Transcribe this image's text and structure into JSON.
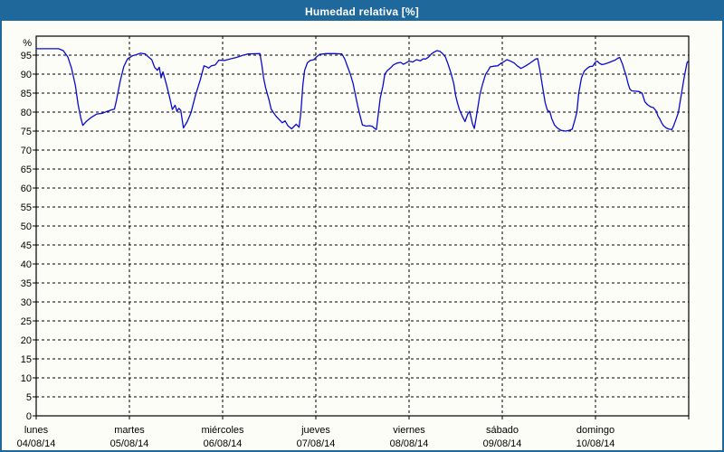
{
  "window": {
    "title": "Humedad relativa [%]"
  },
  "colors": {
    "accent_blue": "#1E689C",
    "line_blue": "#0A0ACD",
    "axis_black": "#000000",
    "background": "#FDFDF8",
    "title_text": "#FFFFFF"
  },
  "chart_data": {
    "type": "line",
    "title": "Humedad relativa [%]",
    "xlabel": "",
    "ylabel": "%",
    "ylim": [
      0,
      100
    ],
    "ytick_step": 5,
    "ytick_labels": [
      "0",
      "5",
      "10",
      "15",
      "20",
      "25",
      "30",
      "35",
      "40",
      "45",
      "50",
      "55",
      "60",
      "65",
      "70",
      "75",
      "80",
      "85",
      "90",
      "95"
    ],
    "grid": "dashed-black",
    "legend_position": "none",
    "x_axis": {
      "unit": "days",
      "range_days": 7,
      "days": [
        {
          "name": "lunes",
          "date": "04/08/14"
        },
        {
          "name": "martes",
          "date": "05/08/14"
        },
        {
          "name": "miércoles",
          "date": "06/08/14"
        },
        {
          "name": "jueves",
          "date": "07/08/14"
        },
        {
          "name": "viernes",
          "date": "08/08/14"
        },
        {
          "name": "sábado",
          "date": "09/08/14"
        },
        {
          "name": "domingo",
          "date": "10/08/14"
        }
      ]
    },
    "series": [
      {
        "name": "Humedad relativa",
        "color": "#0A0ACD",
        "points": [
          [
            0.0,
            96.7
          ],
          [
            0.24,
            96.7
          ],
          [
            0.29,
            96.2
          ],
          [
            0.34,
            94.5
          ],
          [
            0.38,
            91.5
          ],
          [
            0.42,
            87.0
          ],
          [
            0.45,
            82.0
          ],
          [
            0.48,
            78.3
          ],
          [
            0.5,
            76.5
          ],
          [
            0.54,
            77.6
          ],
          [
            0.59,
            78.6
          ],
          [
            0.65,
            79.5
          ],
          [
            0.71,
            79.7
          ],
          [
            0.76,
            80.2
          ],
          [
            0.81,
            80.6
          ],
          [
            0.84,
            80.8
          ],
          [
            0.86,
            83.0
          ],
          [
            0.9,
            88.0
          ],
          [
            0.94,
            92.0
          ],
          [
            0.98,
            94.0
          ],
          [
            1.03,
            94.8
          ],
          [
            1.07,
            95.1
          ],
          [
            1.12,
            95.5
          ],
          [
            1.17,
            95.3
          ],
          [
            1.21,
            94.4
          ],
          [
            1.24,
            93.8
          ],
          [
            1.27,
            91.8
          ],
          [
            1.3,
            91.0
          ],
          [
            1.32,
            91.8
          ],
          [
            1.34,
            89.0
          ],
          [
            1.36,
            90.6
          ],
          [
            1.4,
            87.0
          ],
          [
            1.43,
            84.0
          ],
          [
            1.46,
            80.7
          ],
          [
            1.49,
            81.8
          ],
          [
            1.51,
            80.2
          ],
          [
            1.53,
            81.0
          ],
          [
            1.55,
            80.5
          ],
          [
            1.58,
            75.8
          ],
          [
            1.62,
            77.5
          ],
          [
            1.66,
            79.8
          ],
          [
            1.71,
            84.5
          ],
          [
            1.76,
            88.5
          ],
          [
            1.8,
            92.2
          ],
          [
            1.82,
            92.0
          ],
          [
            1.85,
            91.6
          ],
          [
            1.88,
            92.2
          ],
          [
            1.92,
            92.4
          ],
          [
            1.96,
            93.7
          ],
          [
            2.02,
            93.6
          ],
          [
            2.08,
            94.0
          ],
          [
            2.15,
            94.4
          ],
          [
            2.21,
            94.9
          ],
          [
            2.27,
            95.3
          ],
          [
            2.4,
            95.4
          ],
          [
            2.42,
            92.5
          ],
          [
            2.44,
            89.0
          ],
          [
            2.46,
            86.5
          ],
          [
            2.48,
            84.8
          ],
          [
            2.5,
            83.0
          ],
          [
            2.52,
            80.8
          ],
          [
            2.57,
            79.0
          ],
          [
            2.6,
            78.2
          ],
          [
            2.64,
            77.2
          ],
          [
            2.67,
            77.7
          ],
          [
            2.7,
            76.4
          ],
          [
            2.74,
            75.6
          ],
          [
            2.79,
            76.8
          ],
          [
            2.82,
            76.0
          ],
          [
            2.84,
            80.0
          ],
          [
            2.86,
            87.0
          ],
          [
            2.88,
            91.0
          ],
          [
            2.91,
            93.0
          ],
          [
            2.94,
            93.6
          ],
          [
            2.98,
            93.8
          ],
          [
            3.01,
            94.6
          ],
          [
            3.04,
            95.2
          ],
          [
            3.11,
            95.4
          ],
          [
            3.2,
            95.4
          ],
          [
            3.28,
            95.3
          ],
          [
            3.31,
            94.0
          ],
          [
            3.34,
            92.0
          ],
          [
            3.37,
            90.0
          ],
          [
            3.4,
            87.5
          ],
          [
            3.42,
            85.0
          ],
          [
            3.45,
            81.5
          ],
          [
            3.47,
            79.5
          ],
          [
            3.49,
            77.5
          ],
          [
            3.5,
            76.6
          ],
          [
            3.54,
            76.3
          ],
          [
            3.58,
            76.4
          ],
          [
            3.61,
            76.2
          ],
          [
            3.63,
            75.7
          ],
          [
            3.65,
            75.4
          ],
          [
            3.69,
            83.6
          ],
          [
            3.72,
            87.0
          ],
          [
            3.74,
            90.0
          ],
          [
            3.77,
            91.0
          ],
          [
            3.8,
            91.6
          ],
          [
            3.83,
            92.4
          ],
          [
            3.87,
            92.9
          ],
          [
            3.91,
            93.1
          ],
          [
            3.94,
            92.6
          ],
          [
            3.97,
            93.0
          ],
          [
            4.0,
            93.4
          ],
          [
            4.04,
            93.2
          ],
          [
            4.08,
            93.8
          ],
          [
            4.12,
            93.5
          ],
          [
            4.15,
            94.0
          ],
          [
            4.18,
            94.0
          ],
          [
            4.21,
            94.5
          ],
          [
            4.24,
            95.3
          ],
          [
            4.27,
            95.8
          ],
          [
            4.3,
            96.2
          ],
          [
            4.33,
            96.0
          ],
          [
            4.36,
            95.4
          ],
          [
            4.39,
            94.5
          ],
          [
            4.42,
            92.5
          ],
          [
            4.45,
            90.2
          ],
          [
            4.48,
            87.5
          ],
          [
            4.5,
            84.3
          ],
          [
            4.52,
            82.3
          ],
          [
            4.54,
            80.7
          ],
          [
            4.57,
            79.0
          ],
          [
            4.6,
            77.5
          ],
          [
            4.63,
            79.5
          ],
          [
            4.65,
            80.2
          ],
          [
            4.68,
            77.0
          ],
          [
            4.7,
            75.7
          ],
          [
            4.73,
            80.0
          ],
          [
            4.76,
            84.7
          ],
          [
            4.79,
            87.5
          ],
          [
            4.82,
            89.9
          ],
          [
            4.85,
            91.0
          ],
          [
            4.87,
            91.9
          ],
          [
            4.91,
            92.1
          ],
          [
            4.95,
            92.2
          ],
          [
            4.99,
            92.9
          ],
          [
            5.02,
            93.3
          ],
          [
            5.05,
            93.8
          ],
          [
            5.09,
            93.4
          ],
          [
            5.13,
            92.9
          ],
          [
            5.16,
            92.2
          ],
          [
            5.2,
            91.5
          ],
          [
            5.24,
            92.0
          ],
          [
            5.28,
            92.6
          ],
          [
            5.32,
            93.3
          ],
          [
            5.36,
            94.0
          ],
          [
            5.38,
            94.1
          ],
          [
            5.4,
            91.5
          ],
          [
            5.42,
            88.5
          ],
          [
            5.44,
            85.5
          ],
          [
            5.46,
            82.5
          ],
          [
            5.48,
            80.8
          ],
          [
            5.49,
            80.3
          ],
          [
            5.51,
            80.2
          ],
          [
            5.53,
            78.3
          ],
          [
            5.56,
            76.6
          ],
          [
            5.59,
            75.8
          ],
          [
            5.63,
            75.2
          ],
          [
            5.68,
            75.0
          ],
          [
            5.72,
            75.2
          ],
          [
            5.75,
            75.5
          ],
          [
            5.78,
            78.0
          ],
          [
            5.8,
            80.0
          ],
          [
            5.82,
            85.0
          ],
          [
            5.85,
            89.0
          ],
          [
            5.88,
            90.8
          ],
          [
            5.91,
            91.5
          ],
          [
            5.94,
            92.0
          ],
          [
            5.97,
            92.1
          ],
          [
            6.0,
            93.2
          ],
          [
            6.02,
            93.4
          ],
          [
            6.04,
            92.9
          ],
          [
            6.07,
            92.5
          ],
          [
            6.1,
            92.7
          ],
          [
            6.14,
            93.0
          ],
          [
            6.17,
            93.3
          ],
          [
            6.21,
            93.7
          ],
          [
            6.24,
            94.2
          ],
          [
            6.26,
            94.4
          ],
          [
            6.29,
            92.6
          ],
          [
            6.31,
            91.0
          ],
          [
            6.33,
            89.5
          ],
          [
            6.35,
            87.5
          ],
          [
            6.37,
            86.0
          ],
          [
            6.39,
            85.6
          ],
          [
            6.43,
            85.5
          ],
          [
            6.47,
            85.4
          ],
          [
            6.49,
            85.1
          ],
          [
            6.5,
            85.0
          ],
          [
            6.53,
            82.7
          ],
          [
            6.56,
            81.9
          ],
          [
            6.59,
            81.4
          ],
          [
            6.62,
            81.2
          ],
          [
            6.65,
            80.3
          ],
          [
            6.67,
            79.0
          ],
          [
            6.69,
            78.2
          ],
          [
            6.71,
            77.2
          ],
          [
            6.73,
            76.4
          ],
          [
            6.76,
            75.8
          ],
          [
            6.79,
            75.5
          ],
          [
            6.82,
            75.4
          ],
          [
            6.84,
            76.5
          ],
          [
            6.87,
            78.5
          ],
          [
            6.89,
            80.0
          ],
          [
            6.91,
            83.0
          ],
          [
            6.93,
            86.0
          ],
          [
            6.95,
            89.0
          ],
          [
            6.97,
            91.5
          ],
          [
            6.98,
            92.8
          ],
          [
            6.99,
            93.3
          ]
        ]
      }
    ]
  }
}
